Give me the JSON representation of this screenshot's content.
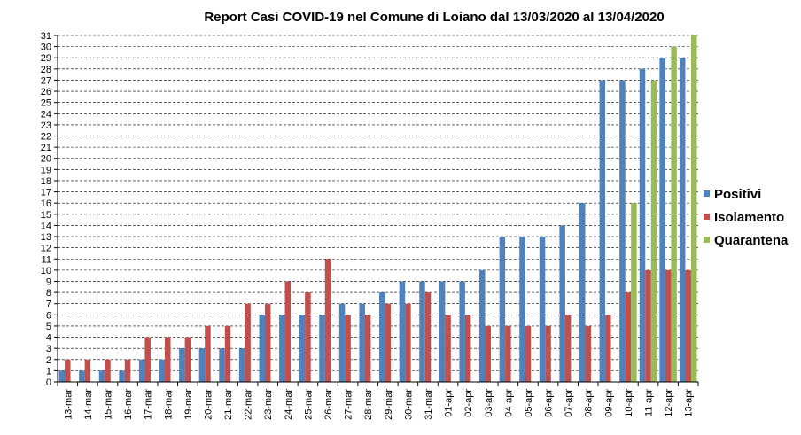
{
  "chart_data": {
    "type": "bar",
    "title": "Report  Casi COVID-19 nel Comune di Loiano dal 13/03/2020 al 13/04/2020",
    "xlabel": "",
    "ylabel": "",
    "ylim": [
      0,
      31
    ],
    "y_ticks": [
      "0",
      "1",
      "2",
      "3",
      "4",
      "5",
      "6",
      "7",
      "8",
      "9",
      "10",
      "11",
      "12",
      "13",
      "14",
      "15",
      "16",
      "17",
      "18",
      "19",
      "20",
      "21",
      "22",
      "23",
      "24",
      "25",
      "26",
      "27",
      "28",
      "29",
      "30",
      "31"
    ],
    "grid": true,
    "legend_position": "right",
    "categories": [
      "13-mar",
      "14-mar",
      "15-mar",
      "16-mar",
      "17-mar",
      "18-mar",
      "19-mar",
      "20-mar",
      "21-mar",
      "22-mar",
      "23-mar",
      "24-mar",
      "25-mar",
      "26-mar",
      "27-mar",
      "28-mar",
      "29-mar",
      "30-mar",
      "31-mar",
      "01-apr",
      "02-apr",
      "03-apr",
      "04-apr",
      "05-apr",
      "06-apr",
      "07-apr",
      "08-apr",
      "09-apr",
      "10-apr",
      "11-apr",
      "12-apr",
      "13-apr"
    ],
    "series": [
      {
        "name": "Positivi",
        "color": "#4F81BD",
        "values": [
          1,
          1,
          1,
          1,
          2,
          2,
          3,
          3,
          3,
          3,
          6,
          6,
          6,
          6,
          7,
          7,
          8,
          9,
          9,
          9,
          9,
          10,
          13,
          13,
          13,
          14,
          16,
          27,
          27,
          28,
          29,
          29
        ]
      },
      {
        "name": "Isolamento",
        "color": "#C0504D",
        "values": [
          2,
          2,
          2,
          2,
          4,
          4,
          4,
          5,
          5,
          7,
          7,
          9,
          8,
          11,
          6,
          6,
          7,
          7,
          8,
          6,
          6,
          5,
          5,
          5,
          5,
          6,
          5,
          6,
          8,
          10,
          10,
          10
        ]
      },
      {
        "name": "Quarantena",
        "color": "#9BBB59",
        "values": [
          0,
          0,
          0,
          0,
          0,
          0,
          0,
          0,
          0,
          0,
          0,
          0,
          0,
          0,
          0,
          0,
          0,
          0,
          0,
          0,
          0,
          0,
          0,
          0,
          0,
          0,
          0,
          0,
          16,
          27,
          30,
          31
        ]
      }
    ]
  }
}
